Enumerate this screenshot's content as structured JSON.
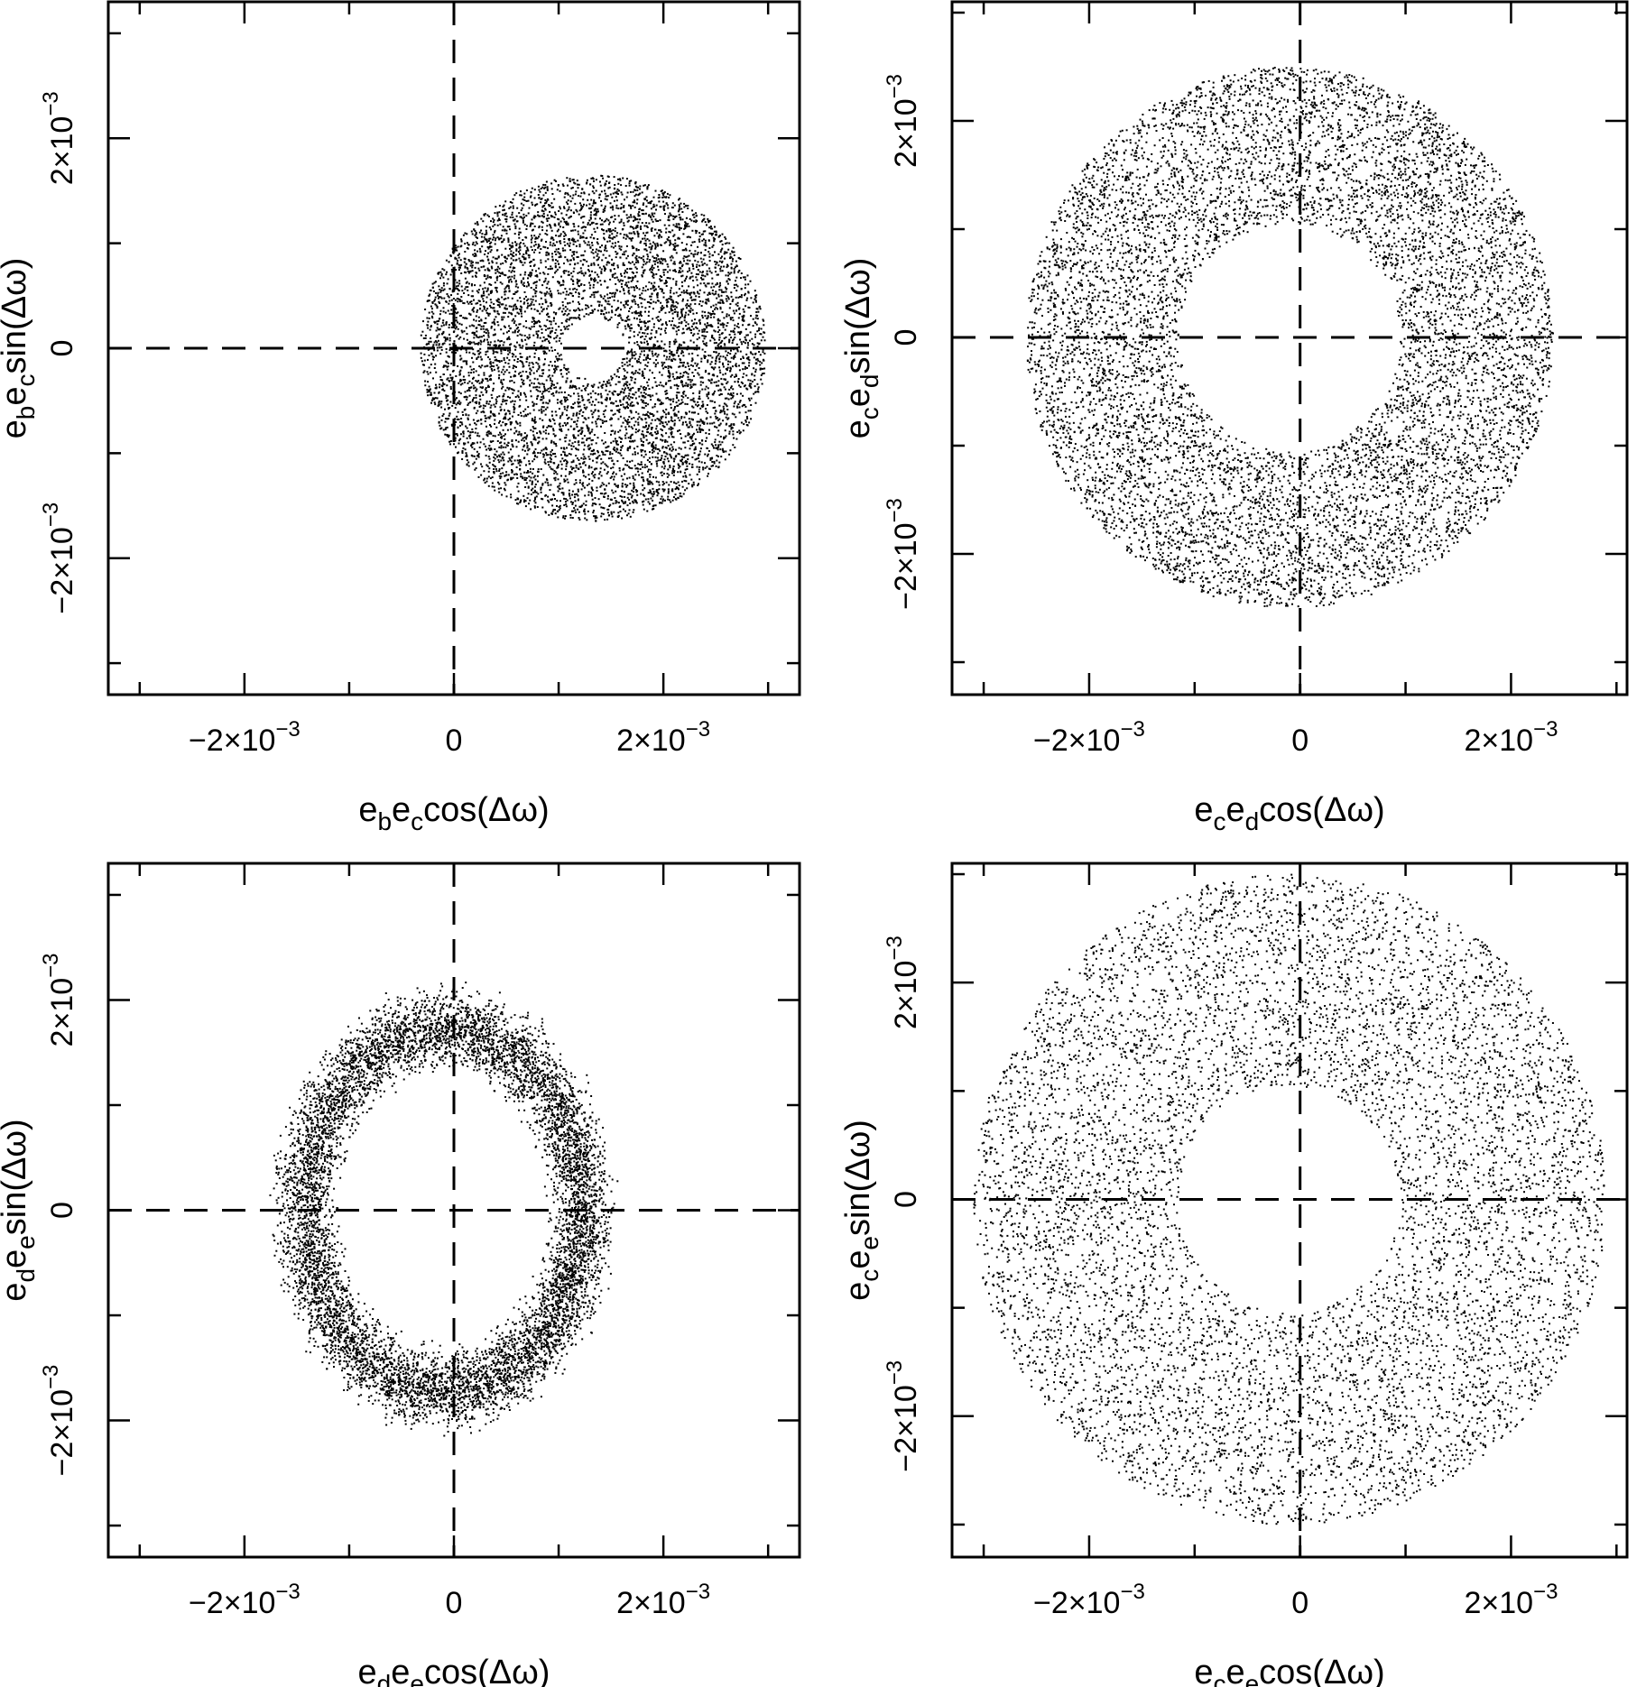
{
  "figure": {
    "panels": [
      {
        "id": "bc",
        "xlabel": {
          "a": "e",
          "a_sub": "b",
          "b": "e",
          "b_sub": "c",
          "func": "cos(Δω)"
        },
        "ylabel": {
          "a": "e",
          "a_sub": "b",
          "b": "e",
          "b_sub": "c",
          "func": "sin(Δω)"
        }
      },
      {
        "id": "cd",
        "xlabel": {
          "a": "e",
          "a_sub": "c",
          "b": "e",
          "b_sub": "d",
          "func": "cos(Δω)"
        },
        "ylabel": {
          "a": "e",
          "a_sub": "c",
          "b": "e",
          "b_sub": "d",
          "func": "sin(Δω)"
        }
      },
      {
        "id": "de",
        "xlabel": {
          "a": "e",
          "a_sub": "d",
          "b": "e",
          "b_sub": "e",
          "func": "cos(Δω)"
        },
        "ylabel": {
          "a": "e",
          "a_sub": "d",
          "b": "e",
          "b_sub": "e",
          "func": "sin(Δω)"
        }
      },
      {
        "id": "ce",
        "xlabel": {
          "a": "e",
          "a_sub": "c",
          "b": "e",
          "b_sub": "e",
          "func": "cos(Δω)"
        },
        "ylabel": {
          "a": "e",
          "a_sub": "c",
          "b": "e",
          "b_sub": "e",
          "func": "sin(Δω)"
        }
      }
    ]
  },
  "chart_data": [
    {
      "type": "scatter",
      "xlabel": "e_b e_c cos(Δω)",
      "ylabel": "e_b e_c sin(Δω)",
      "xlim": [
        -0.0033,
        0.0033
      ],
      "ylim": [
        -0.0033,
        0.0033
      ],
      "ticks": [
        -0.002,
        0,
        0.002
      ],
      "tick_labels": [
        "−2×10",
        "0",
        "2×10"
      ],
      "tick_exponent": "−3",
      "reference_lines": {
        "x": 0,
        "y": 0,
        "style": "dashed"
      },
      "distribution": {
        "shape": "annulus",
        "center": [
          0.00133,
          0.0
        ],
        "inner_radius": 0.0003,
        "outer_radius": 0.00165,
        "points": 7000
      },
      "grid": false,
      "legend": "none"
    },
    {
      "type": "scatter",
      "xlabel": "e_c e_d cos(Δω)",
      "ylabel": "e_c e_d sin(Δω)",
      "xlim": [
        -0.0033,
        0.0031
      ],
      "ylim": [
        -0.0033,
        0.0031
      ],
      "ticks": [
        -0.002,
        0,
        0.002
      ],
      "tick_labels": [
        "−2×10",
        "0",
        "2×10"
      ],
      "tick_exponent": "−3",
      "reference_lines": {
        "x": 0,
        "y": 0,
        "style": "dashed"
      },
      "distribution": {
        "shape": "annulus",
        "center": [
          -0.0001,
          0.0
        ],
        "inner_radius": 0.00105,
        "outer_radius": 0.0025,
        "points": 9000
      },
      "grid": false,
      "legend": "none"
    },
    {
      "type": "scatter",
      "xlabel": "e_d e_e cos(Δω)",
      "ylabel": "e_d e_e sin(Δω)",
      "xlim": [
        -0.0033,
        0.0033
      ],
      "ylim": [
        -0.0033,
        0.0033
      ],
      "ticks": [
        -0.002,
        0,
        0.002
      ],
      "tick_labels": [
        "−2×10",
        "0",
        "2×10"
      ],
      "tick_exponent": "−3",
      "reference_lines": {
        "x": 0,
        "y": 0,
        "style": "dashed"
      },
      "distribution": {
        "shape": "elliptical ring",
        "center": [
          -0.0001,
          0.0
        ],
        "radius_x": 0.00133,
        "radius_y": 0.00172,
        "ring_width": 0.00032,
        "points": 8000
      },
      "grid": false,
      "legend": "none"
    },
    {
      "type": "scatter",
      "xlabel": "e_c e_e cos(Δω)",
      "ylabel": "e_c e_e sin(Δω)",
      "xlim": [
        -0.0033,
        0.0031
      ],
      "ylim": [
        -0.0033,
        0.0031
      ],
      "ticks": [
        -0.002,
        0,
        0.002
      ],
      "tick_labels": [
        "−2×10",
        "0",
        "2×10"
      ],
      "tick_exponent": "−3",
      "reference_lines": {
        "x": 0,
        "y": 0,
        "style": "dashed"
      },
      "distribution": {
        "shape": "annulus",
        "center": [
          -0.0001,
          0.0
        ],
        "inner_radius": 0.00105,
        "outer_radius": 0.003,
        "points": 8000
      },
      "grid": false,
      "legend": "none"
    }
  ]
}
